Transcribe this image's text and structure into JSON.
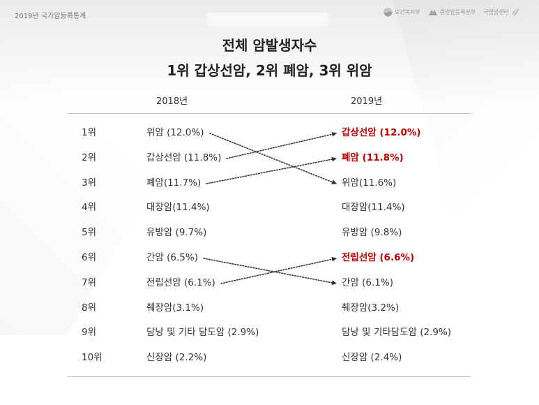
{
  "header": {
    "top_label": "2019년 국가암등록통계",
    "logos": [
      {
        "icon": "ministry-emblem-icon",
        "text": "보건복지부"
      },
      {
        "icon": "registry-emblem-icon",
        "text": "중앙암등록본부"
      },
      {
        "icon": "leaf-icon",
        "text": "국립암센터"
      }
    ]
  },
  "title": {
    "line1": "전체 암발생자수",
    "line2": "1위 갑상선암, 2위 폐암, 3위 위암"
  },
  "columns": {
    "left": "2018년",
    "right": "2019년"
  },
  "colors": {
    "highlight": "#c00000",
    "text": "#333333",
    "rule": "#bdbdbd",
    "arrow": "#333333"
  },
  "rows": [
    {
      "rank": "1위",
      "y2018": "위암 (12.0%)",
      "y2019": "갑상선암 (12.0%)",
      "highlight": true
    },
    {
      "rank": "2위",
      "y2018": "갑상선암 (11.8%)",
      "y2019": "폐암 (11.8%)",
      "highlight": true
    },
    {
      "rank": "3위",
      "y2018": "폐암(11.7%)",
      "y2019": "위암(11.6%)",
      "highlight": false
    },
    {
      "rank": "4위",
      "y2018": "대장암(11.4%)",
      "y2019": "대장암(11.4%)",
      "highlight": false
    },
    {
      "rank": "5위",
      "y2018": "유방암 (9.7%)",
      "y2019": "유방암 (9.8%)",
      "highlight": false
    },
    {
      "rank": "6위",
      "y2018": "간암 (6.5%)",
      "y2019": "전립선암 (6.6%)",
      "highlight": true
    },
    {
      "rank": "7위",
      "y2018": "전립선암 (6.1%)",
      "y2019": "간암 (6.1%)",
      "highlight": false
    },
    {
      "rank": "8위",
      "y2018": "췌장암(3.1%)",
      "y2019": "췌장암(3.2%)",
      "highlight": false
    },
    {
      "rank": "9위",
      "y2018": "담낭 및 기타 담도암 (2.9%)",
      "y2019": "담낭 및 기타담도암 (2.9%)",
      "highlight": false
    },
    {
      "rank": "10위",
      "y2018": "신장암 (2.2%)",
      "y2019": "신장암 (2.4%)",
      "highlight": false
    }
  ],
  "rank_moves": [
    {
      "from_rank": 1,
      "to_rank": 3
    },
    {
      "from_rank": 2,
      "to_rank": 1
    },
    {
      "from_rank": 3,
      "to_rank": 2
    },
    {
      "from_rank": 6,
      "to_rank": 7
    },
    {
      "from_rank": 7,
      "to_rank": 6
    }
  ]
}
